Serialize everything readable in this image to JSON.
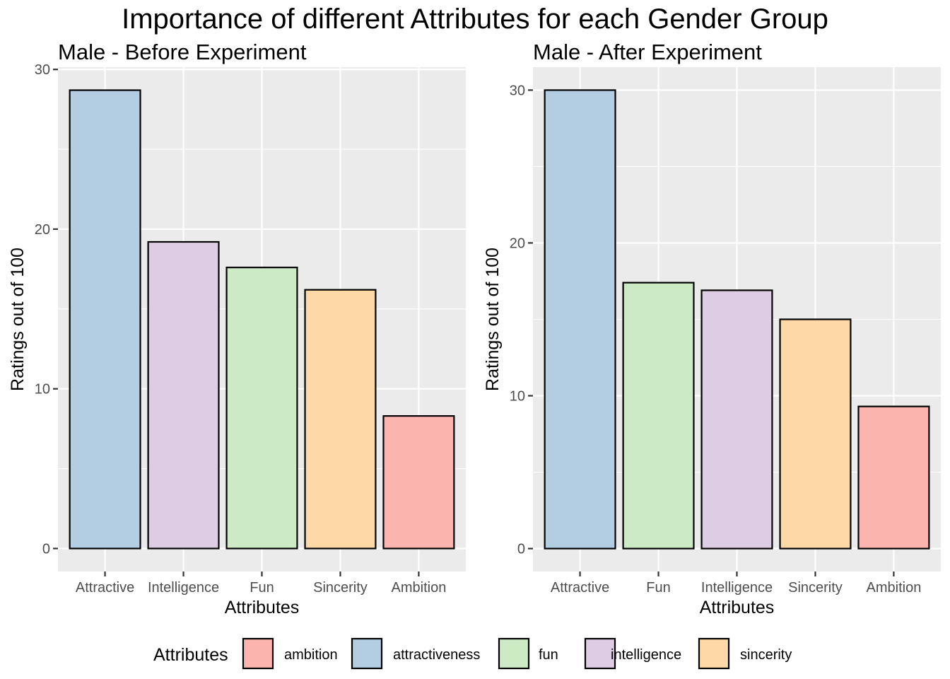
{
  "title": "Importance of different Attributes for each Gender Group",
  "colors": {
    "ambition": "#FBB4AE",
    "attractiveness": "#B3CDE3",
    "fun": "#CCEBC5",
    "intelligence": "#DECBE4",
    "sincerity": "#FED9A6",
    "panel_background": "#EBEBEB",
    "grid": "#FFFFFF",
    "bar_outline": "#000000"
  },
  "legend": {
    "title": "Attributes",
    "items": [
      {
        "label": "ambition",
        "key": "ambition"
      },
      {
        "label": "attractiveness",
        "key": "attractiveness"
      },
      {
        "label": "fun",
        "key": "fun"
      },
      {
        "label": "intelligence",
        "key": "intelligence"
      },
      {
        "label": "sincerity",
        "key": "sincerity"
      }
    ]
  },
  "chart_data": [
    {
      "type": "bar",
      "title": "Male - Before Experiment",
      "xlabel": "Attributes",
      "ylabel": "Ratings out of 100",
      "categories": [
        "Attractive",
        "Intelligence",
        "Fun",
        "Sincerity",
        "Ambition"
      ],
      "fill_keys": [
        "attractiveness",
        "intelligence",
        "fun",
        "sincerity",
        "ambition"
      ],
      "values": [
        28.7,
        19.2,
        17.6,
        16.2,
        8.3
      ],
      "yticks": [
        0,
        10,
        20,
        30
      ],
      "ylim": [
        -1.44,
        30.14
      ],
      "grid": true
    },
    {
      "type": "bar",
      "title": "Male - After Experiment",
      "xlabel": "Attributes",
      "ylabel": "Ratings out of 100",
      "categories": [
        "Attractive",
        "Fun",
        "Intelligence",
        "Sincerity",
        "Ambition"
      ],
      "fill_keys": [
        "attractiveness",
        "fun",
        "intelligence",
        "sincerity",
        "ambition"
      ],
      "values": [
        30.0,
        17.4,
        16.9,
        15.0,
        9.3
      ],
      "yticks": [
        0,
        10,
        20,
        30
      ],
      "ylim": [
        -1.5,
        31.5
      ],
      "grid": true
    }
  ]
}
